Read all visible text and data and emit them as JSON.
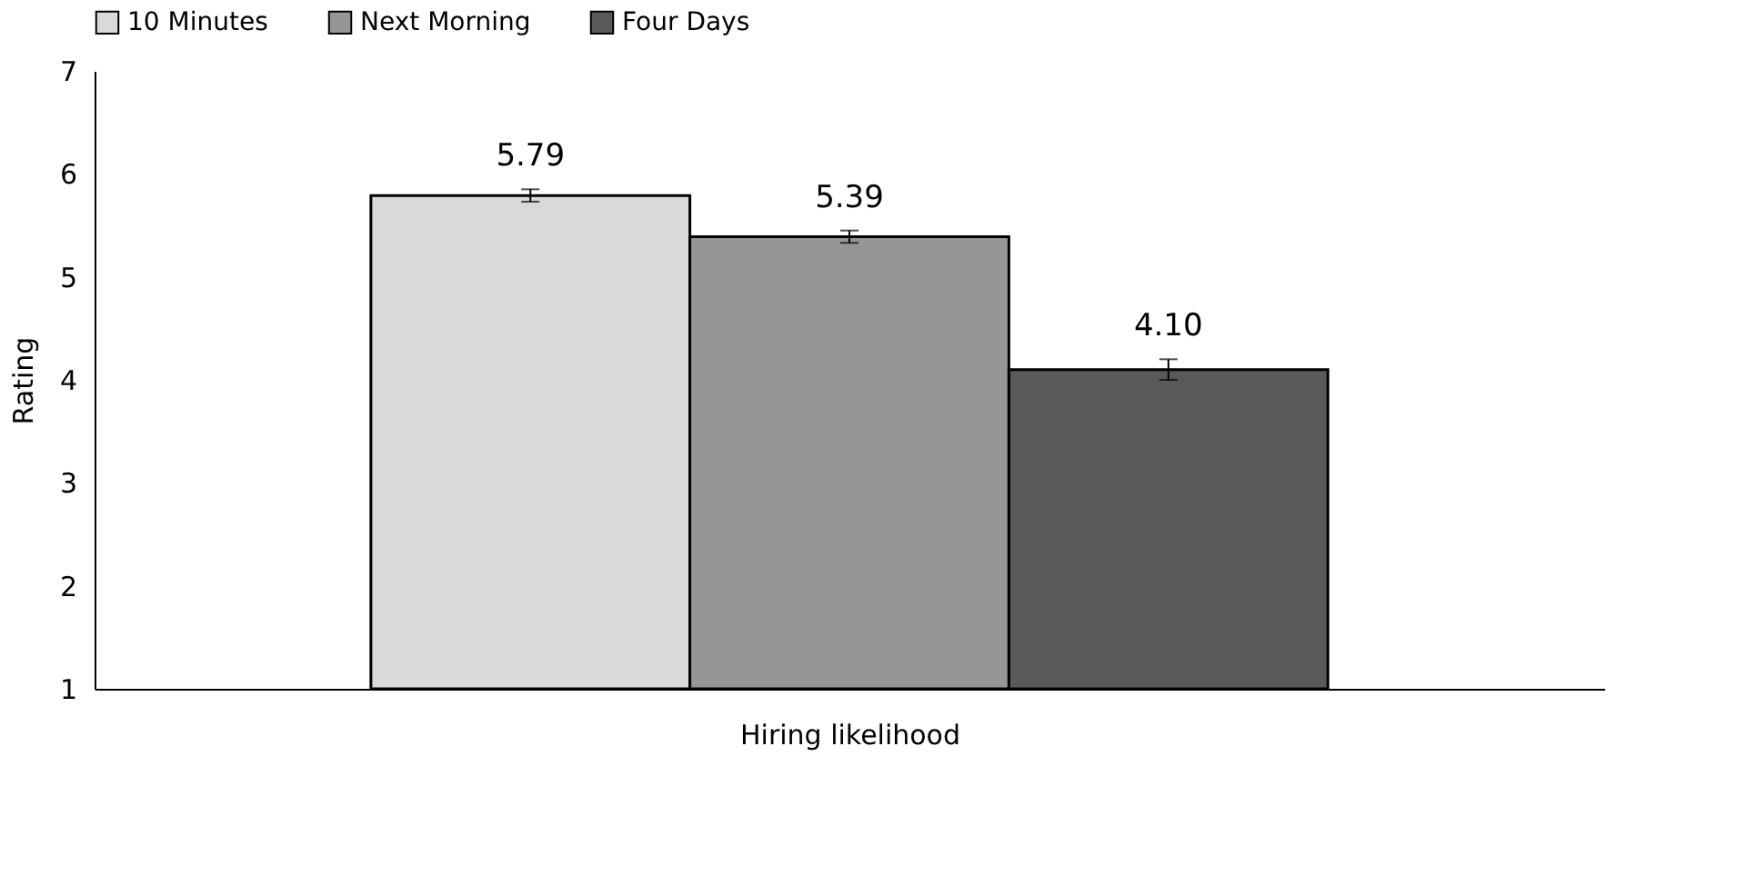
{
  "chart_data": {
    "type": "bar",
    "xlabel": "Hiring likelihood",
    "ylabel": "Rating",
    "categories": [
      null
    ],
    "series": [
      {
        "name": "10 Minutes",
        "color": "#d9d9d9",
        "values": [
          5.79
        ],
        "errors": [
          0.06
        ],
        "value_labels": [
          "5.79"
        ]
      },
      {
        "name": "Next Morning",
        "color": "#969696",
        "values": [
          5.39
        ],
        "errors": [
          0.06
        ],
        "value_labels": [
          "5.39"
        ]
      },
      {
        "name": "Four Days",
        "color": "#595959",
        "values": [
          4.1
        ],
        "errors": [
          0.1
        ],
        "value_labels": [
          "4.10"
        ]
      }
    ],
    "ylim": [
      1,
      7
    ],
    "yticks": [
      1,
      2,
      3,
      4,
      5,
      6,
      7
    ],
    "grid": false,
    "legend": "top",
    "tick_labels": "y"
  }
}
